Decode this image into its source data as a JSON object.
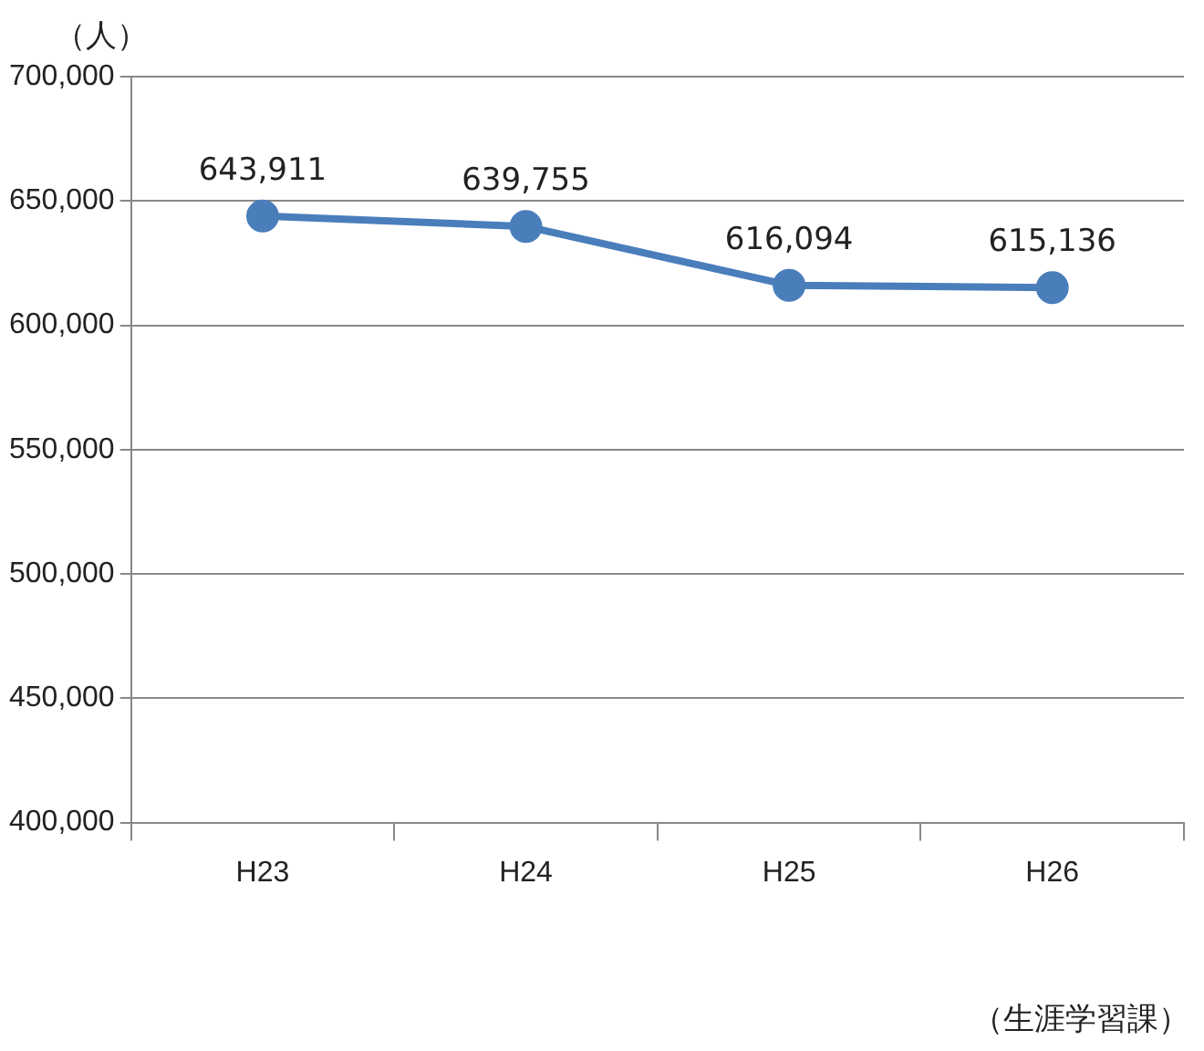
{
  "chart_data": {
    "type": "line",
    "ylabel": "（人）",
    "categories": [
      "H23",
      "H24",
      "H25",
      "H26"
    ],
    "series": [
      {
        "color": "#4a7ebb",
        "values": [
          643911,
          639755,
          616094,
          615136
        ],
        "value_labels": [
          "643,911",
          "639,755",
          "616,094",
          "615,136"
        ]
      }
    ],
    "ylim": [
      400000,
      700000
    ],
    "yticks": [
      {
        "value": 400000,
        "label": "400,000"
      },
      {
        "value": 450000,
        "label": "450,000"
      },
      {
        "value": 500000,
        "label": "500,000"
      },
      {
        "value": 550000,
        "label": "550,000"
      },
      {
        "value": 600000,
        "label": "600,000"
      },
      {
        "value": 650000,
        "label": "650,000"
      },
      {
        "value": 700000,
        "label": "700,000"
      }
    ],
    "grid": "y",
    "legend": false,
    "marker": "circle",
    "line_style": "solid",
    "annotations": [
      "（生涯学習課）"
    ]
  }
}
